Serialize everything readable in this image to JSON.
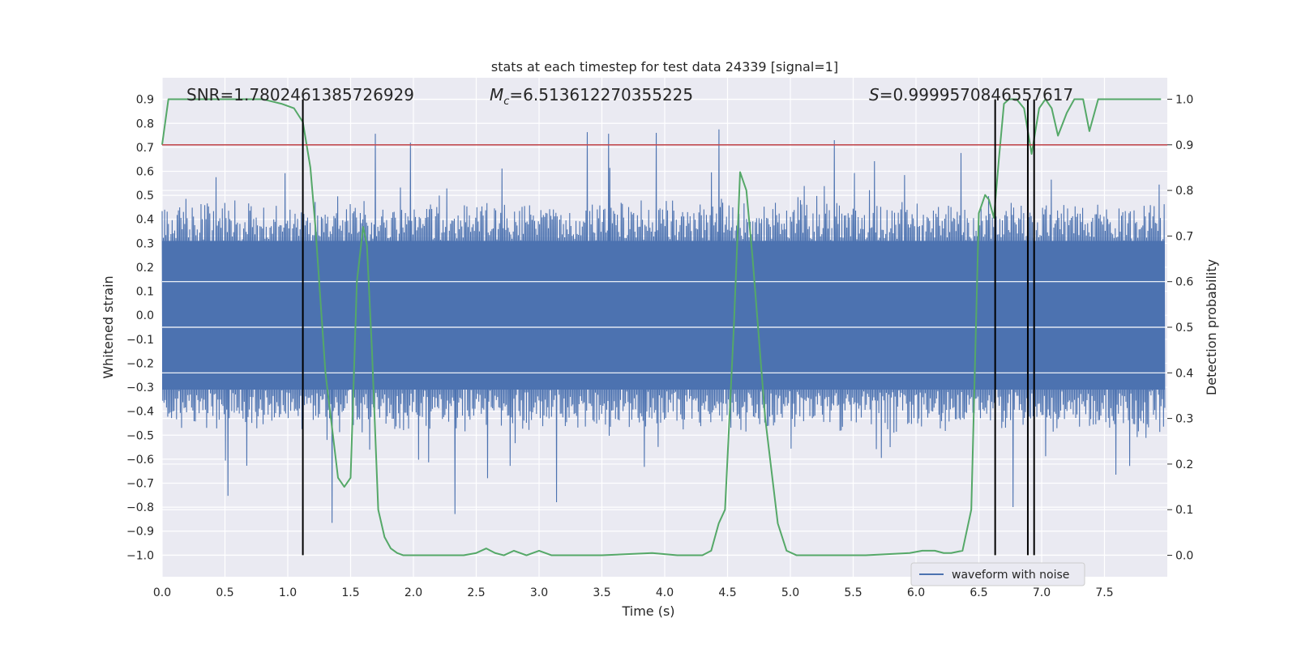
{
  "chart_data": {
    "type": "line",
    "title": "stats at each timestep for test data 24339 [signal=1]",
    "xlabel": "Time (s)",
    "ylabel_left": "Whitened strain",
    "ylabel_right": "Detection probability",
    "xlim": [
      0.0,
      8.0
    ],
    "ylim_left": [
      -1.09,
      0.99
    ],
    "ylim_right": [
      -0.047,
      1.047
    ],
    "x_ticks": [
      0.0,
      0.5,
      1.0,
      1.5,
      2.0,
      2.5,
      3.0,
      3.5,
      4.0,
      4.5,
      5.0,
      5.5,
      6.0,
      6.5,
      7.0,
      7.5
    ],
    "x_tick_labels": [
      "0.0",
      "0.5",
      "1.0",
      "1.5",
      "2.0",
      "2.5",
      "3.0",
      "3.5",
      "4.0",
      "4.5",
      "5.0",
      "5.5",
      "6.0",
      "6.5",
      "7.0",
      "7.5"
    ],
    "y_left_ticks": [
      0.9,
      0.8,
      0.7,
      0.6,
      0.5,
      0.4,
      0.3,
      0.2,
      0.1,
      0.0,
      -0.1,
      -0.2,
      -0.3,
      -0.4,
      -0.5,
      -0.6,
      -0.7,
      -0.8,
      -0.9,
      -1.0
    ],
    "y_left_tick_labels": [
      "0.9",
      "0.8",
      "0.7",
      "0.6",
      "0.5",
      "0.4",
      "0.3",
      "0.2",
      "0.1",
      "0.0",
      "−0.1",
      "−0.2",
      "−0.3",
      "−0.4",
      "−0.5",
      "−0.6",
      "−0.7",
      "−0.8",
      "−0.9",
      "−1.0"
    ],
    "y_right_ticks": [
      1.0,
      0.9,
      0.8,
      0.7,
      0.6,
      0.5,
      0.4,
      0.3,
      0.2,
      0.1,
      0.0
    ],
    "y_right_tick_labels": [
      "1.0",
      "0.9",
      "0.8",
      "0.7",
      "0.6",
      "0.5",
      "0.4",
      "0.3",
      "0.2",
      "0.1",
      "0.0"
    ],
    "annotations": {
      "snr": "SNR=1.7802461385726929",
      "mc_symbol": "M",
      "mc_sub": "c",
      "mc_value": "=6.513612270355225",
      "s_symbol": "S",
      "s_value": "=0.9999570846557617"
    },
    "legend": {
      "label": "waveform with noise",
      "placement": "lower-right"
    },
    "threshold": {
      "value": 0.9,
      "axis": "right",
      "color": "#c44e52"
    },
    "vlines": [
      1.12,
      6.63,
      6.89,
      6.94
    ],
    "waveform": {
      "name": "waveform with noise",
      "color": "#4c72b0",
      "samples": 1600,
      "core_amplitude": 0.33,
      "max": 0.9,
      "min": -1.0
    },
    "series": [
      {
        "name": "detection probability",
        "axis": "right",
        "color": "#55a868",
        "x": [
          0.0,
          0.05,
          0.1,
          0.3,
          0.6,
          0.8,
          0.95,
          1.05,
          1.12,
          1.18,
          1.22,
          1.3,
          1.4,
          1.45,
          1.5,
          1.55,
          1.6,
          1.63,
          1.67,
          1.72,
          1.77,
          1.82,
          1.87,
          1.92,
          2.0,
          2.1,
          2.25,
          2.4,
          2.5,
          2.58,
          2.65,
          2.72,
          2.8,
          2.9,
          3.0,
          3.1,
          3.25,
          3.5,
          3.9,
          4.1,
          4.3,
          4.37,
          4.43,
          4.48,
          4.55,
          4.6,
          4.65,
          4.7,
          4.8,
          4.9,
          4.97,
          5.05,
          5.3,
          5.6,
          5.95,
          6.05,
          6.15,
          6.22,
          6.28,
          6.37,
          6.44,
          6.5,
          6.55,
          6.58,
          6.62,
          6.66,
          6.7,
          6.74,
          6.8,
          6.86,
          6.92,
          6.98,
          7.03,
          7.08,
          7.13,
          7.2,
          7.26,
          7.33,
          7.38,
          7.45,
          7.5,
          7.56,
          7.95
        ],
        "y": [
          0.9,
          1.0,
          1.0,
          1.0,
          1.0,
          1.0,
          0.99,
          0.98,
          0.95,
          0.85,
          0.72,
          0.4,
          0.17,
          0.15,
          0.17,
          0.6,
          0.72,
          0.68,
          0.45,
          0.1,
          0.04,
          0.015,
          0.005,
          0.0,
          0.0,
          0.0,
          0.0,
          0.0,
          0.005,
          0.015,
          0.005,
          0.0,
          0.01,
          0.0,
          0.01,
          0.0,
          0.0,
          0.0,
          0.005,
          0.0,
          0.0,
          0.01,
          0.07,
          0.1,
          0.5,
          0.84,
          0.8,
          0.65,
          0.3,
          0.07,
          0.01,
          0.0,
          0.0,
          0.0,
          0.005,
          0.01,
          0.01,
          0.005,
          0.005,
          0.01,
          0.1,
          0.75,
          0.79,
          0.78,
          0.74,
          0.87,
          0.99,
          1.0,
          1.0,
          0.98,
          0.88,
          0.98,
          1.0,
          0.98,
          0.92,
          0.97,
          1.0,
          1.0,
          0.93,
          1.0,
          1.0,
          1.0,
          1.0
        ]
      }
    ]
  }
}
